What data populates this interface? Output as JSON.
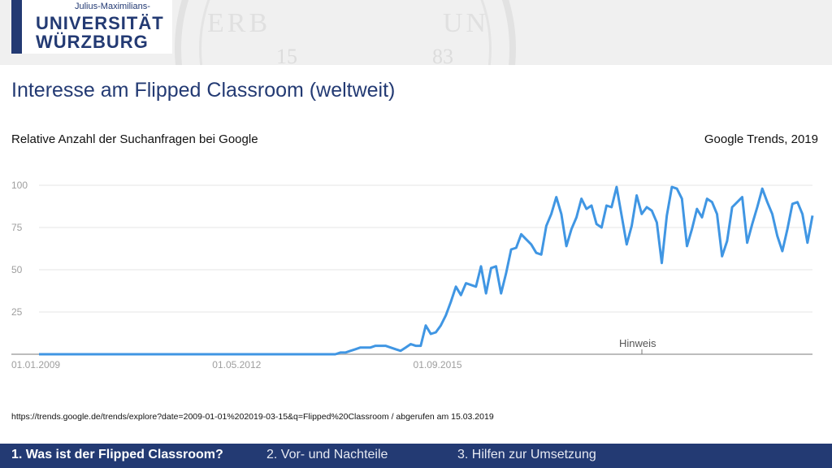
{
  "header": {
    "logo_sub": "Julius-Maximilians-",
    "logo_line1": "UNIVERSITÄT",
    "logo_line2": "WÜRZBURG",
    "seal_numbers": [
      "15",
      "83"
    ]
  },
  "slide": {
    "title": "Interesse am Flipped Classroom (weltweit)",
    "subtitle": "Relative Anzahl der Suchanfragen bei Google",
    "source_right": "Google Trends, 2019",
    "url_note": "https://trends.google.de/trends/explore?date=2009-01-01%202019-03-15&q=Flipped%20Classroom / abgerufen am 15.03.2019"
  },
  "footer": {
    "items": [
      {
        "label": "1. Was ist der Flipped Classroom?",
        "active": true
      },
      {
        "label": "2. Vor- und Nachteile",
        "active": false
      },
      {
        "label": "3. Hilfen zur Umsetzung",
        "active": false
      }
    ]
  },
  "colors": {
    "brand": "#233a73",
    "line": "#4096e3",
    "axis": "#9e9e9e",
    "grid": "#e6e6e6"
  },
  "chart_data": {
    "type": "line",
    "ylim": [
      0,
      100
    ],
    "yticks": [
      25,
      50,
      75,
      100
    ],
    "xticks": [
      "01.01.2009",
      "01.05.2012",
      "01.09.2015"
    ],
    "annotation": "Hinweis",
    "grid": true,
    "series": [
      {
        "values": [
          0,
          0,
          0,
          0,
          0,
          0,
          0,
          0,
          0,
          0,
          0,
          0,
          0,
          0,
          0,
          0,
          0,
          0,
          0,
          0,
          0,
          0,
          0,
          0,
          0,
          0,
          0,
          0,
          0,
          0,
          0,
          0,
          0,
          0,
          0,
          0,
          0,
          0,
          0,
          0,
          0,
          0,
          0,
          0,
          0,
          0,
          0,
          0,
          0,
          0,
          0,
          0,
          0,
          0,
          0,
          0,
          0,
          0,
          0,
          0,
          1,
          1,
          2,
          3,
          4,
          4,
          4,
          5,
          5,
          5,
          4,
          3,
          2,
          4,
          6,
          5,
          5,
          17,
          12,
          13,
          17,
          23,
          31,
          40,
          35,
          42,
          41,
          40,
          52,
          36,
          51,
          52,
          36,
          48,
          62,
          63,
          71,
          68,
          65,
          60,
          59,
          76,
          83,
          93,
          83,
          64,
          74,
          81,
          92,
          86,
          88,
          77,
          75,
          88,
          87,
          99,
          82,
          65,
          76,
          94,
          83,
          87,
          85,
          78,
          54,
          82,
          99,
          98,
          92,
          64,
          74,
          86,
          81,
          92,
          90,
          83,
          58,
          67,
          87,
          90,
          93,
          66,
          77,
          87,
          98,
          90,
          83,
          70,
          61,
          74,
          89,
          90,
          83,
          66,
          82
        ]
      }
    ]
  }
}
